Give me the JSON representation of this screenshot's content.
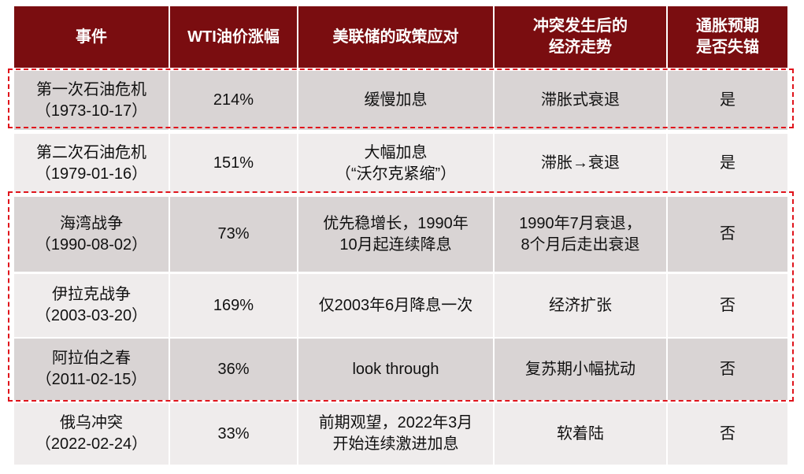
{
  "table": {
    "header": [
      [
        "事件"
      ],
      [
        "WTI油价涨幅"
      ],
      [
        "美联储的政策应对"
      ],
      [
        "冲突发生后的",
        "经济走势"
      ],
      [
        "通胀预期",
        "是否失锚"
      ]
    ],
    "rows": [
      [
        [
          "第一次石油危机",
          "（1973-10-17）"
        ],
        [
          "214%"
        ],
        [
          "缓慢加息"
        ],
        [
          "滞胀式衰退"
        ],
        [
          "是"
        ]
      ],
      [
        [
          "第二次石油危机",
          "（1979-01-16）"
        ],
        [
          "151%"
        ],
        [
          "大幅加息",
          "（“沃尔克紧缩”）"
        ],
        [
          "滞胀→衰退"
        ],
        [
          "是"
        ]
      ],
      [
        [
          "海湾战争",
          "（1990-08-02）"
        ],
        [
          "73%"
        ],
        [
          "优先稳增长，1990年",
          "10月起连续降息"
        ],
        [
          "1990年7月衰退，",
          "8个月后走出衰退"
        ],
        [
          "否"
        ]
      ],
      [
        [
          "伊拉克战争",
          "（2003-03-20）"
        ],
        [
          "169%"
        ],
        [
          "仅2003年6月降息一次"
        ],
        [
          "经济扩张"
        ],
        [
          "否"
        ]
      ],
      [
        [
          "阿拉伯之春",
          "（2011-02-15）"
        ],
        [
          "36%"
        ],
        [
          "look through"
        ],
        [
          "复苏期小幅扰动"
        ],
        [
          "否"
        ]
      ],
      [
        [
          "俄乌冲突",
          "（2022-02-24）"
        ],
        [
          "33%"
        ],
        [
          "前期观望，2022年3月",
          "开始连续激进加息"
        ],
        [
          "软着陆"
        ],
        [
          "否"
        ]
      ]
    ]
  }
}
